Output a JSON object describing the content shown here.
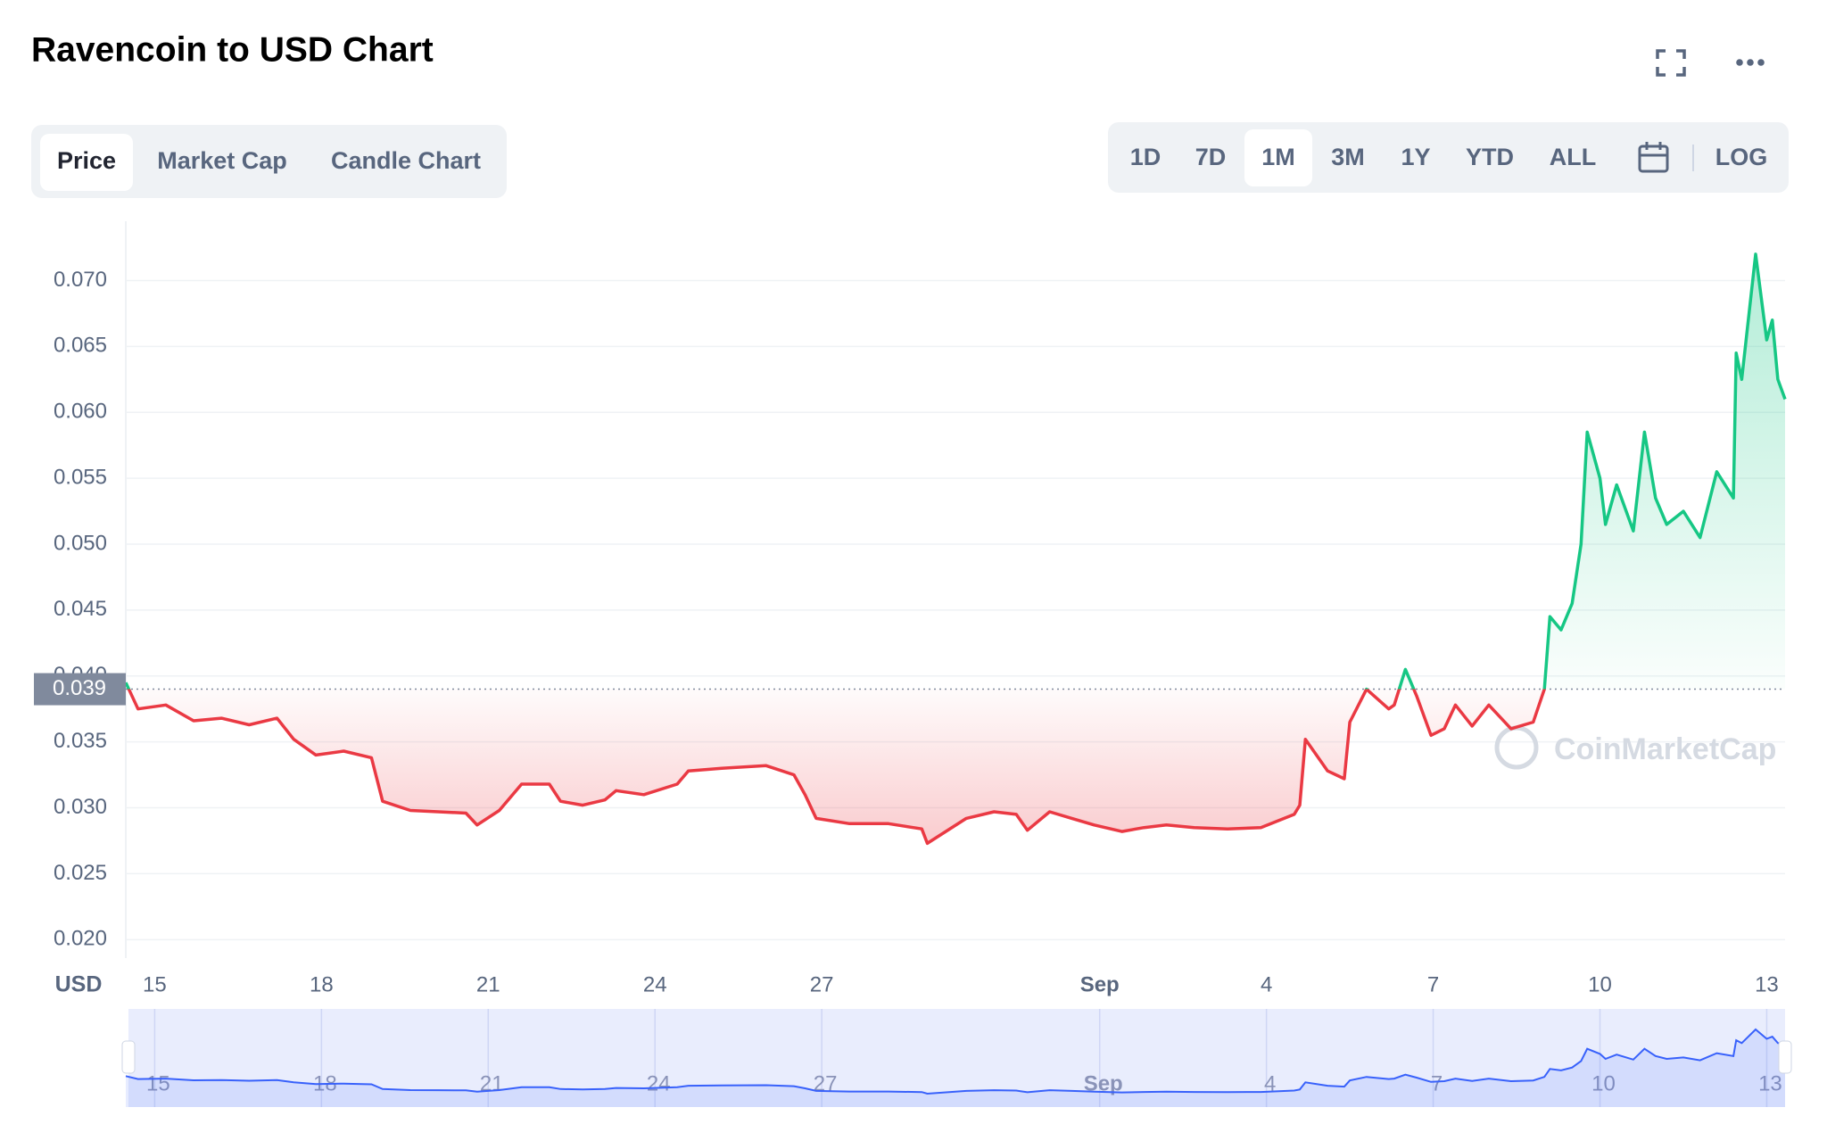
{
  "chart_data": {
    "type": "line",
    "title": "Ravencoin to USD Chart",
    "y_label": "USD",
    "watermark": "CoinMarketCap",
    "up_color": "#16c784",
    "down_color": "#ea3943",
    "navigator_color": "#3861fb",
    "grid": true,
    "reference": {
      "value": 0.039,
      "label": "0.039"
    },
    "xlim": [
      -0.52,
      29.33
    ],
    "ylim": [
      0.0186,
      0.0745
    ],
    "xticks": [
      {
        "value": 0,
        "label": "15"
      },
      {
        "value": 3,
        "label": "18"
      },
      {
        "value": 6,
        "label": "21"
      },
      {
        "value": 9,
        "label": "24"
      },
      {
        "value": 12,
        "label": "27"
      },
      {
        "value": 17,
        "label": "Sep"
      },
      {
        "value": 20,
        "label": "4"
      },
      {
        "value": 23,
        "label": "7"
      },
      {
        "value": 26,
        "label": "10"
      },
      {
        "value": 29,
        "label": "13"
      }
    ],
    "yticks": [
      {
        "value": 0.02,
        "label": "0.020"
      },
      {
        "value": 0.025,
        "label": "0.025"
      },
      {
        "value": 0.03,
        "label": "0.030"
      },
      {
        "value": 0.035,
        "label": "0.035"
      },
      {
        "value": 0.04,
        "label": "0.040"
      },
      {
        "value": 0.045,
        "label": "0.045"
      },
      {
        "value": 0.05,
        "label": "0.050"
      },
      {
        "value": 0.055,
        "label": "0.055"
      },
      {
        "value": 0.06,
        "label": "0.060"
      },
      {
        "value": 0.065,
        "label": "0.065"
      },
      {
        "value": 0.07,
        "label": "0.070"
      }
    ],
    "x": [
      -0.52,
      -0.3,
      0.2,
      0.7,
      1.2,
      1.7,
      2.2,
      2.5,
      2.9,
      3.4,
      3.9,
      4.1,
      4.6,
      5.1,
      5.6,
      5.8,
      6.2,
      6.6,
      7.1,
      7.3,
      7.7,
      8.1,
      8.3,
      8.8,
      9.4,
      9.6,
      10.2,
      11.0,
      11.5,
      11.7,
      11.9,
      12.5,
      13.2,
      13.8,
      13.9,
      14.6,
      15.1,
      15.5,
      15.7,
      16.1,
      16.5,
      16.9,
      17.4,
      17.8,
      18.2,
      18.7,
      19.3,
      19.9,
      20.5,
      20.6,
      20.7,
      21.1,
      21.4,
      21.5,
      21.8,
      22.2,
      22.3,
      22.5,
      22.7,
      22.96,
      23.2,
      23.4,
      23.7,
      24.0,
      24.4,
      24.8,
      25.0,
      25.1,
      25.3,
      25.5,
      25.66,
      25.77,
      26.0,
      26.1,
      26.3,
      26.6,
      26.8,
      27.0,
      27.2,
      27.5,
      27.8,
      28.1,
      28.4,
      28.45,
      28.55,
      28.8,
      29.0,
      29.1,
      29.2,
      29.33
    ],
    "values": [
      0.0395,
      0.0375,
      0.0378,
      0.0366,
      0.0368,
      0.0363,
      0.0368,
      0.0352,
      0.034,
      0.0343,
      0.0338,
      0.0305,
      0.0298,
      0.0297,
      0.0296,
      0.0287,
      0.0298,
      0.0318,
      0.0318,
      0.0305,
      0.0302,
      0.0306,
      0.0313,
      0.031,
      0.0318,
      0.0328,
      0.033,
      0.0332,
      0.0325,
      0.031,
      0.0292,
      0.0288,
      0.0288,
      0.0284,
      0.0273,
      0.0292,
      0.0297,
      0.0295,
      0.0283,
      0.0297,
      0.0292,
      0.0287,
      0.0282,
      0.0285,
      0.0287,
      0.0285,
      0.0284,
      0.0285,
      0.0295,
      0.0302,
      0.0352,
      0.0328,
      0.0322,
      0.0365,
      0.039,
      0.0375,
      0.0378,
      0.0405,
      0.0385,
      0.0355,
      0.036,
      0.0378,
      0.0362,
      0.0378,
      0.036,
      0.0365,
      0.039,
      0.0445,
      0.0435,
      0.0455,
      0.05,
      0.0585,
      0.055,
      0.0515,
      0.0545,
      0.051,
      0.0585,
      0.0535,
      0.0515,
      0.0525,
      0.0505,
      0.0555,
      0.0535,
      0.0645,
      0.0625,
      0.072,
      0.0655,
      0.067,
      0.0625,
      0.061
    ]
  },
  "controls": {
    "tabs": [
      "Price",
      "Market Cap",
      "Candle Chart"
    ],
    "active_tab": "Price",
    "ranges": [
      "1D",
      "7D",
      "1M",
      "3M",
      "1Y",
      "YTD",
      "ALL"
    ],
    "active_range": "1M",
    "log": "LOG"
  }
}
